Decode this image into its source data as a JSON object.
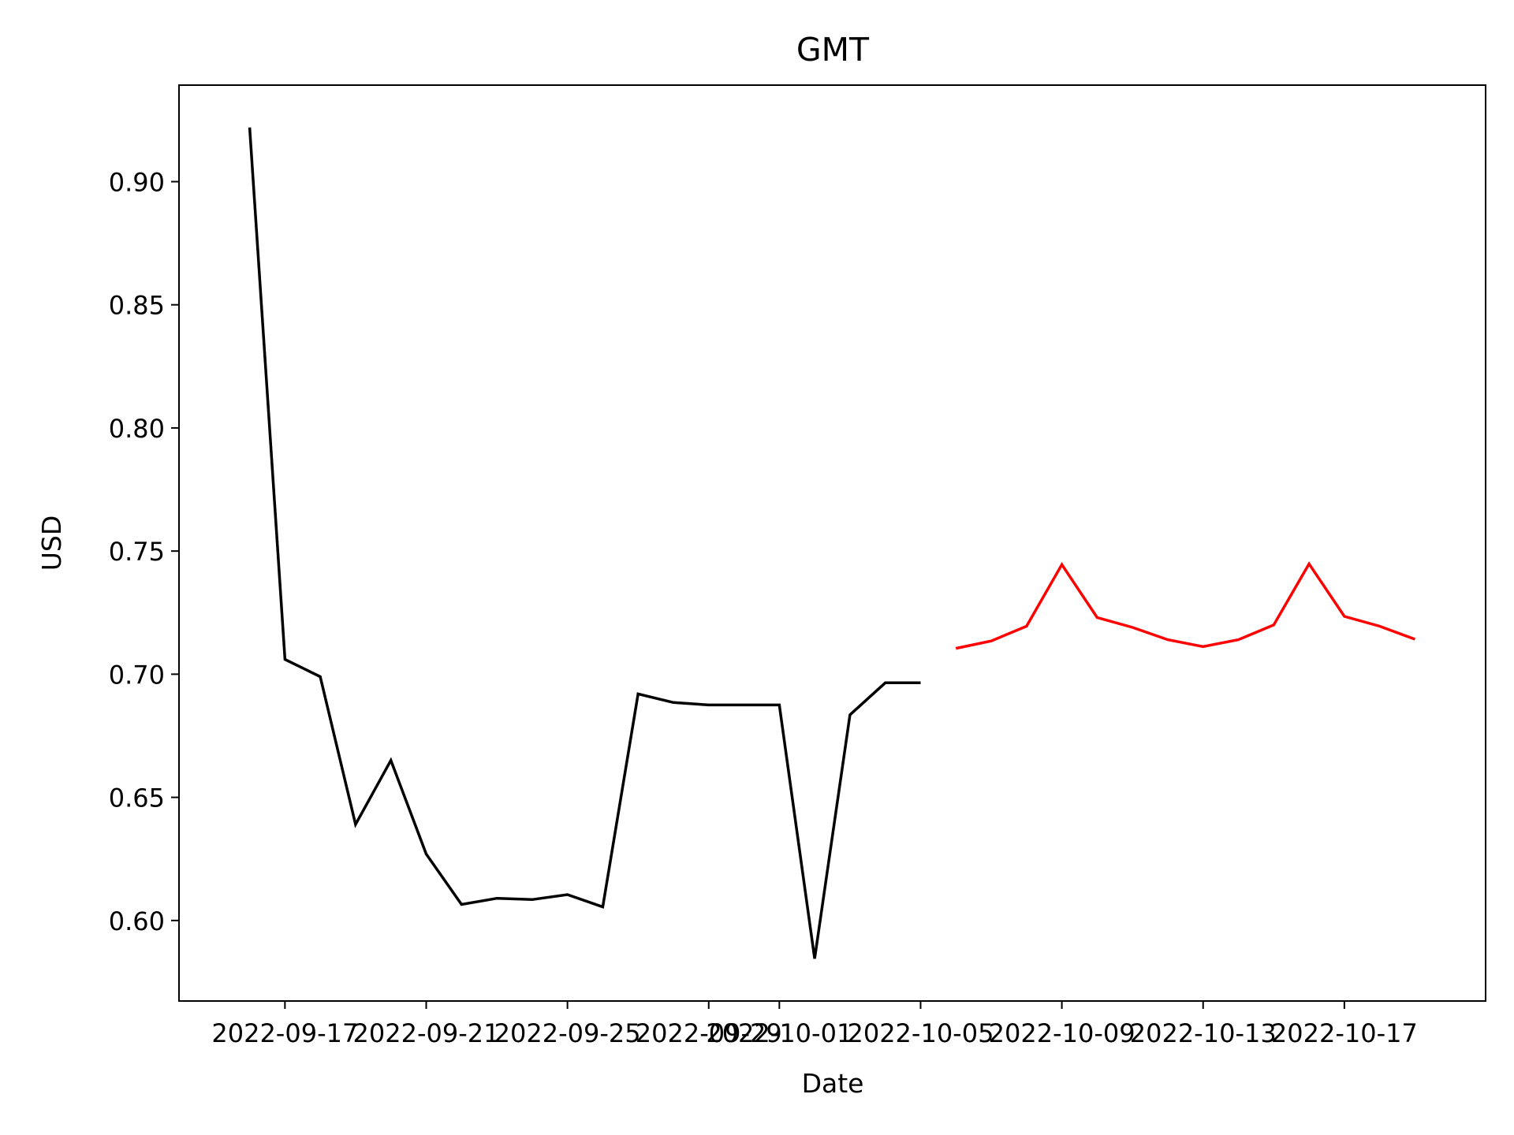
{
  "chart_data": {
    "type": "line",
    "title": "GMT",
    "xlabel": "Date",
    "ylabel": "USD",
    "xlim": [
      "2022-09-14",
      "2022-10-21"
    ],
    "ylim": [
      0.5673,
      0.9392
    ],
    "grid": false,
    "y_ticks": [
      0.6,
      0.65,
      0.7,
      0.75,
      0.8,
      0.85,
      0.9
    ],
    "x_ticks": [
      "2022-09-17",
      "2022-09-21",
      "2022-09-25",
      "2022-09-29",
      "2022-10-01",
      "2022-10-05",
      "2022-10-09",
      "2022-10-13",
      "2022-10-17"
    ],
    "series": [
      {
        "color": "#000000",
        "points": [
          [
            "2022-09-16",
            0.922
          ],
          [
            "2022-09-17",
            0.706
          ],
          [
            "2022-09-18",
            0.699
          ],
          [
            "2022-09-19",
            0.639
          ],
          [
            "2022-09-20",
            0.665
          ],
          [
            "2022-09-21",
            0.627
          ],
          [
            "2022-09-22",
            0.6065
          ],
          [
            "2022-09-23",
            0.609
          ],
          [
            "2022-09-24",
            0.6085
          ],
          [
            "2022-09-25",
            0.6105
          ],
          [
            "2022-09-26",
            0.6055
          ],
          [
            "2022-09-27",
            0.692
          ],
          [
            "2022-09-28",
            0.6885
          ],
          [
            "2022-09-29",
            0.6875
          ],
          [
            "2022-09-30",
            0.6875
          ],
          [
            "2022-10-01",
            0.6875
          ],
          [
            "2022-10-02",
            0.5845
          ],
          [
            "2022-10-03",
            0.6835
          ],
          [
            "2022-10-04",
            0.6965
          ],
          [
            "2022-10-05",
            0.6965
          ]
        ]
      },
      {
        "color": "#ff0000",
        "points": [
          [
            "2022-10-06",
            0.7105
          ],
          [
            "2022-10-07",
            0.7135
          ],
          [
            "2022-10-08",
            0.7195
          ],
          [
            "2022-10-09",
            0.7445
          ],
          [
            "2022-10-10",
            0.723
          ],
          [
            "2022-10-11",
            0.719
          ],
          [
            "2022-10-12",
            0.714
          ],
          [
            "2022-10-13",
            0.7112
          ],
          [
            "2022-10-14",
            0.714
          ],
          [
            "2022-10-15",
            0.72
          ],
          [
            "2022-10-16",
            0.7448
          ],
          [
            "2022-10-17",
            0.7235
          ],
          [
            "2022-10-18",
            0.7195
          ],
          [
            "2022-10-19",
            0.7142
          ]
        ]
      }
    ]
  }
}
